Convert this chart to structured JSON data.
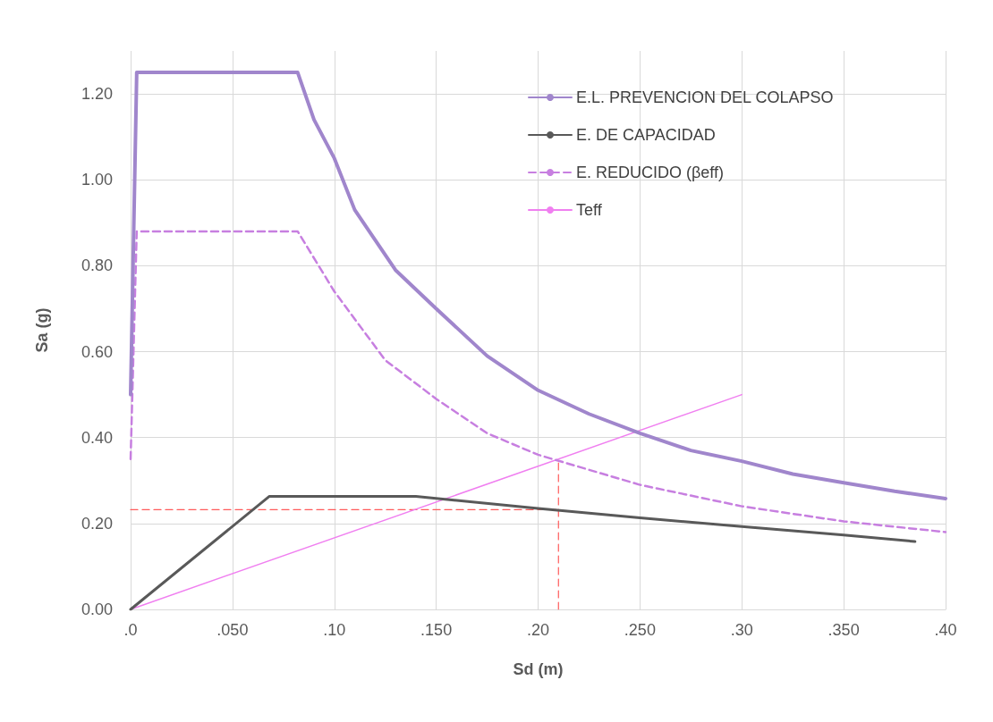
{
  "chart_data": {
    "type": "line",
    "xlabel": "Sd (m)",
    "ylabel": "Sa (g)",
    "xlim": [
      0,
      0.4
    ],
    "ylim": [
      0,
      1.3
    ],
    "xticks": [
      {
        "value": 0,
        "label": ".0"
      },
      {
        "value": 0.05,
        "label": ".050"
      },
      {
        "value": 0.1,
        "label": ".10"
      },
      {
        "value": 0.15,
        "label": ".150"
      },
      {
        "value": 0.2,
        "label": ".20"
      },
      {
        "value": 0.25,
        "label": ".250"
      },
      {
        "value": 0.3,
        "label": ".30"
      },
      {
        "value": 0.35,
        "label": ".350"
      },
      {
        "value": 0.4,
        "label": ".40"
      }
    ],
    "yticks": [
      {
        "value": 0,
        "label": "0.00"
      },
      {
        "value": 0.2,
        "label": "0.20"
      },
      {
        "value": 0.4,
        "label": "0.40"
      },
      {
        "value": 0.6,
        "label": "0.60"
      },
      {
        "value": 0.8,
        "label": "0.80"
      },
      {
        "value": 1,
        "label": "1.00"
      },
      {
        "value": 1.2,
        "label": "1.20"
      }
    ],
    "grid": true,
    "legend": "top right",
    "series": [
      {
        "name": "E.L. PREVENCION DEL COLAPSO",
        "color": "#a086cc",
        "line_style": "solid",
        "x": [
          0,
          0.003,
          0.082,
          0.09,
          0.1,
          0.11,
          0.13,
          0.15,
          0.175,
          0.2,
          0.225,
          0.25,
          0.275,
          0.3,
          0.325,
          0.35,
          0.375,
          0.4
        ],
        "values": [
          0.5,
          1.25,
          1.25,
          1.14,
          1.05,
          0.93,
          0.79,
          0.7,
          0.59,
          0.51,
          0.455,
          0.41,
          0.37,
          0.345,
          0.315,
          0.295,
          0.275,
          0.258
        ]
      },
      {
        "name": "E. DE CAPACIDAD",
        "color": "#595959",
        "line_style": "solid",
        "x": [
          0,
          0.068,
          0.14,
          0.2,
          0.25,
          0.3,
          0.35,
          0.385
        ],
        "values": [
          0,
          0.263,
          0.263,
          0.235,
          0.213,
          0.193,
          0.173,
          0.158
        ]
      },
      {
        "name": "E. REDUCIDO (βeff)",
        "color": "#c77fe0",
        "line_style": "dashed",
        "x": [
          0,
          0.003,
          0.082,
          0.1,
          0.125,
          0.15,
          0.175,
          0.2,
          0.25,
          0.3,
          0.35,
          0.4
        ],
        "values": [
          0.35,
          0.88,
          0.88,
          0.74,
          0.58,
          0.49,
          0.41,
          0.36,
          0.29,
          0.24,
          0.205,
          0.18
        ]
      },
      {
        "name": "Teff",
        "color": "#f07ff0",
        "line_style": "solid",
        "x": [
          0,
          0.3
        ],
        "values": [
          0,
          0.5
        ]
      },
      {
        "color": "#ff5a5a",
        "line_style": "dashed",
        "x": [
          0,
          0.21
        ],
        "values": [
          0.232,
          0.232
        ]
      },
      {
        "color": "#ff5a5a",
        "line_style": "dashed",
        "x": [
          0.21,
          0.21
        ],
        "values": [
          0,
          0.35
        ]
      }
    ]
  }
}
